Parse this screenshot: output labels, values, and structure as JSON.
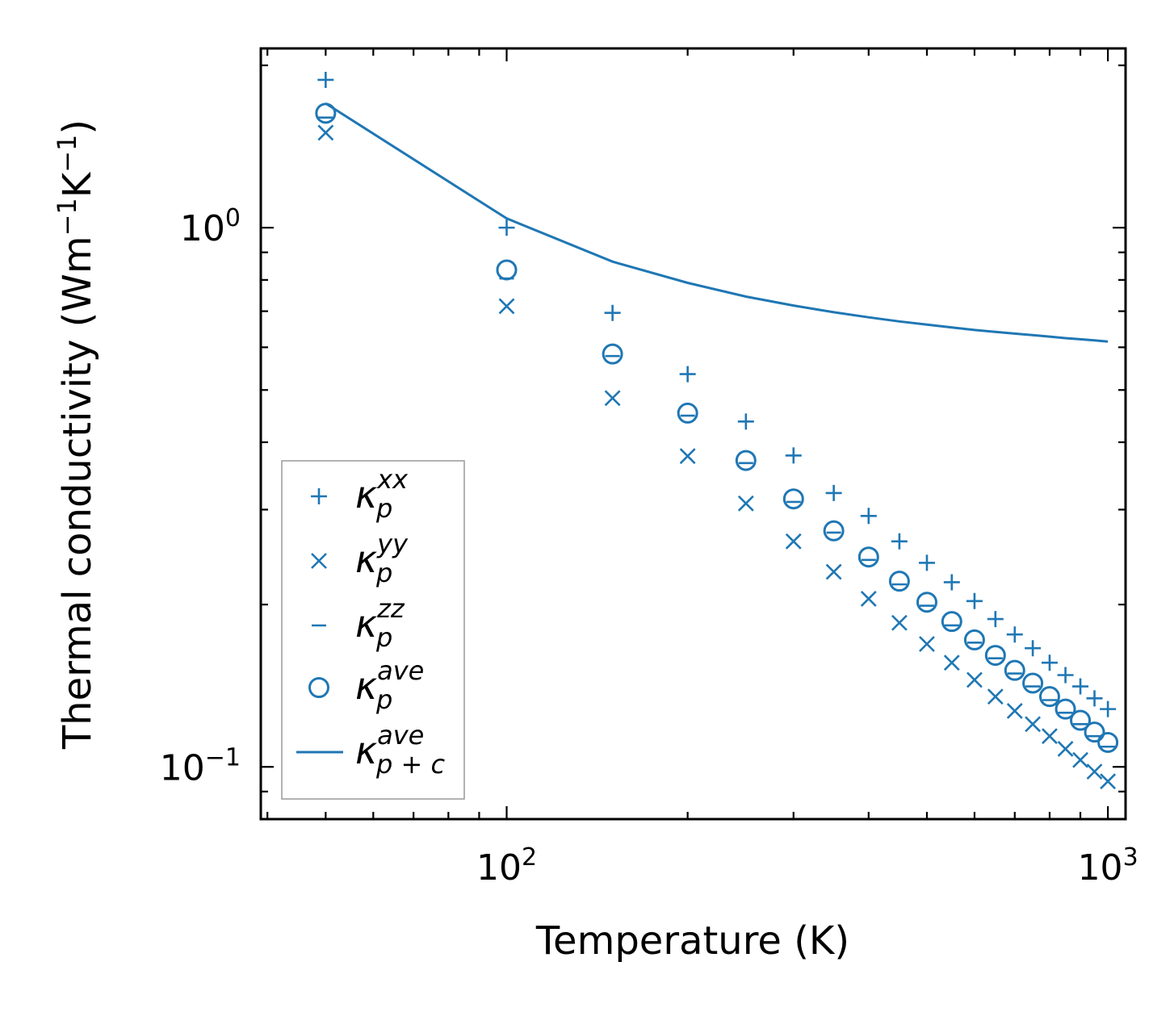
{
  "chart_data": {
    "type": "scatter",
    "x_scale": "log",
    "y_scale": "log",
    "xlabel": "Temperature (K)",
    "ylabel": {
      "prefix": "Thermal conductivity (Wm",
      "sup1": "−1",
      "mid": "K",
      "sup2": "−1",
      "suffix": ")"
    },
    "xlim": [
      39,
      1070
    ],
    "ylim": [
      0.08,
      2.15
    ],
    "x_ticks": [
      {
        "value": 100,
        "base": "10",
        "exp": "2"
      },
      {
        "value": 1000,
        "base": "10",
        "exp": "3"
      }
    ],
    "y_ticks": [
      {
        "value": 0.1,
        "base": "10",
        "exp": "−1"
      },
      {
        "value": 1.0,
        "base": "10",
        "exp": "0"
      }
    ],
    "color": "#1f77b4",
    "legend_position": "lower-left",
    "series": [
      {
        "name": "kp_xx",
        "marker": "plus",
        "label": {
          "base": "κ",
          "sub": "p",
          "sup": "xx"
        },
        "x": [
          50,
          100,
          150,
          200,
          250,
          300,
          350,
          400,
          450,
          500,
          550,
          600,
          650,
          700,
          750,
          800,
          850,
          900,
          950,
          1000
        ],
        "y": [
          1.88,
          1.0,
          0.695,
          0.535,
          0.437,
          0.378,
          0.322,
          0.292,
          0.262,
          0.239,
          0.22,
          0.203,
          0.188,
          0.176,
          0.166,
          0.156,
          0.148,
          0.141,
          0.134,
          0.128
        ]
      },
      {
        "name": "kp_yy",
        "marker": "x",
        "label": {
          "base": "κ",
          "sub": "p",
          "sup": "yy"
        },
        "x": [
          50,
          100,
          150,
          200,
          250,
          300,
          350,
          400,
          450,
          500,
          550,
          600,
          650,
          700,
          750,
          800,
          850,
          900,
          950,
          1000
        ],
        "y": [
          1.5,
          0.715,
          0.483,
          0.377,
          0.308,
          0.262,
          0.23,
          0.205,
          0.185,
          0.169,
          0.156,
          0.145,
          0.135,
          0.127,
          0.12,
          0.114,
          0.108,
          0.103,
          0.098,
          0.094
        ]
      },
      {
        "name": "kp_zz",
        "marker": "hline",
        "label": {
          "base": "κ",
          "sub": "p",
          "sup": "zz"
        },
        "x": [
          50,
          100,
          150,
          200,
          250,
          300,
          350,
          400,
          450,
          500,
          550,
          600,
          650,
          700,
          750,
          800,
          850,
          900,
          950,
          1000
        ],
        "y": [
          1.6,
          0.805,
          0.578,
          0.448,
          0.366,
          0.31,
          0.272,
          0.242,
          0.218,
          0.199,
          0.183,
          0.17,
          0.159,
          0.149,
          0.141,
          0.133,
          0.126,
          0.12,
          0.114,
          0.109
        ]
      },
      {
        "name": "kp_ave",
        "marker": "circle",
        "label": {
          "base": "κ",
          "sub": "p",
          "sup": "ave"
        },
        "x": [
          50,
          100,
          150,
          200,
          250,
          300,
          350,
          400,
          450,
          500,
          550,
          600,
          650,
          700,
          750,
          800,
          850,
          900,
          950,
          1000
        ],
        "y": [
          1.63,
          0.835,
          0.583,
          0.453,
          0.37,
          0.314,
          0.274,
          0.245,
          0.221,
          0.202,
          0.186,
          0.172,
          0.161,
          0.151,
          0.143,
          0.135,
          0.128,
          0.122,
          0.116,
          0.111
        ]
      },
      {
        "name": "kpc_ave",
        "marker": "line",
        "label": {
          "base": "κ",
          "sub": "p + c",
          "sup": "ave"
        },
        "x": [
          50,
          100,
          150,
          200,
          250,
          300,
          350,
          400,
          450,
          500,
          550,
          600,
          650,
          700,
          750,
          800,
          850,
          900,
          950,
          1000
        ],
        "y": [
          1.7,
          1.04,
          0.865,
          0.79,
          0.745,
          0.717,
          0.697,
          0.682,
          0.67,
          0.661,
          0.653,
          0.646,
          0.641,
          0.636,
          0.632,
          0.628,
          0.624,
          0.621,
          0.618,
          0.615
        ]
      }
    ]
  }
}
